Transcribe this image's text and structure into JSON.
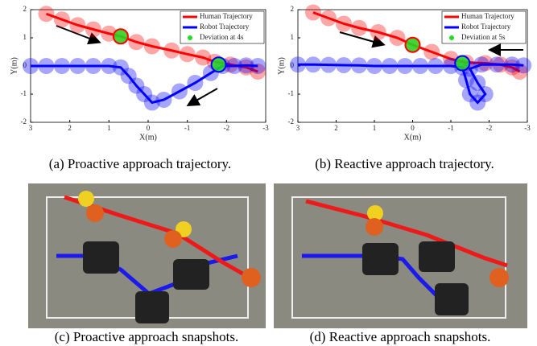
{
  "chart_data": [
    {
      "type": "line",
      "caption": "(a) Proactive approach trajectory.",
      "xlabel": "X(m)",
      "ylabel": "Y(m)",
      "xlim": [
        3,
        -3
      ],
      "ylim": [
        -2,
        2
      ],
      "xticks": [
        3,
        2,
        1,
        0,
        -1,
        -2,
        -3
      ],
      "yticks": [
        -2,
        -1,
        0,
        1,
        2
      ],
      "grid": false,
      "legend": "upper right",
      "series": [
        {
          "name": "Human Trajectory",
          "color": "#ff0000",
          "x": [
            2.6,
            2.2,
            1.8,
            1.4,
            1.0,
            0.7,
            0.3,
            -0.1,
            -0.6,
            -1.0,
            -1.4,
            -1.7,
            -2.1,
            -2.5,
            -2.8
          ],
          "y": [
            1.85,
            1.65,
            1.45,
            1.3,
            1.15,
            1.05,
            0.85,
            0.7,
            0.55,
            0.42,
            0.3,
            0.15,
            0.05,
            -0.05,
            -0.2
          ]
        },
        {
          "name": "Robot Trajectory",
          "color": "#0000ff",
          "x": [
            3,
            2.6,
            2.2,
            1.8,
            1.4,
            1.0,
            0.7,
            0.5,
            0.3,
            0.1,
            -0.1,
            -0.4,
            -0.8,
            -1.2,
            -1.6,
            -1.9,
            -2.2,
            -2.5,
            -2.8
          ],
          "y": [
            0,
            0,
            0,
            0,
            0,
            0,
            -0.05,
            -0.35,
            -0.7,
            -1.0,
            -1.3,
            -1.2,
            -0.9,
            -0.6,
            -0.25,
            0,
            0,
            0.02,
            0
          ]
        },
        {
          "name": "Deviation at 4s",
          "color": "#22dd22",
          "x": [
            0.7,
            -1.8
          ],
          "y": [
            1.05,
            0.05
          ]
        }
      ]
    },
    {
      "type": "line",
      "caption": "(b) Reactive approach trajectory.",
      "xlabel": "X(m)",
      "ylabel": "Y(m)",
      "xlim": [
        3,
        -3
      ],
      "ylim": [
        -2,
        2
      ],
      "xticks": [
        3,
        2,
        1,
        0,
        -1,
        -2,
        -3
      ],
      "yticks": [
        -2,
        -1,
        0,
        1,
        2
      ],
      "grid": false,
      "legend": "upper right",
      "series": [
        {
          "name": "Human Trajectory",
          "color": "#ff0000",
          "x": [
            2.6,
            2.2,
            1.8,
            1.4,
            0.9,
            0.4,
            0,
            -0.5,
            -1.0,
            -1.4,
            -1.9,
            -2.3,
            -2.6,
            -2.8
          ],
          "y": [
            1.9,
            1.7,
            1.5,
            1.35,
            1.2,
            1.0,
            0.75,
            0.5,
            0.25,
            0.12,
            0.1,
            0.05,
            -0.05,
            -0.2
          ]
        },
        {
          "name": "Robot Trajectory",
          "color": "#0000ff",
          "x": [
            3,
            2.6,
            2.2,
            1.8,
            1.4,
            1.0,
            0.6,
            0.2,
            -0.2,
            -0.6,
            -1.0,
            -1.3,
            -1.4,
            -1.5,
            -1.7,
            -1.9,
            -1.7,
            -1.5,
            -1.8,
            -2.2,
            -2.6,
            -2.9
          ],
          "y": [
            0.05,
            0.05,
            0.04,
            0.03,
            0.02,
            0,
            0,
            0,
            0,
            0,
            0,
            -0.05,
            -0.5,
            -1.0,
            -1.3,
            -1.0,
            -0.6,
            -0.1,
            0.05,
            0.05,
            0.05,
            0.02
          ]
        },
        {
          "name": "Deviation at 5s",
          "color": "#22dd22",
          "x": [
            0,
            -1.3
          ],
          "y": [
            0.75,
            0.1
          ]
        }
      ]
    }
  ],
  "photos": [
    {
      "caption": "(c) Proactive approach snapshots."
    },
    {
      "caption": "(d) Reactive approach snapshots."
    }
  ]
}
